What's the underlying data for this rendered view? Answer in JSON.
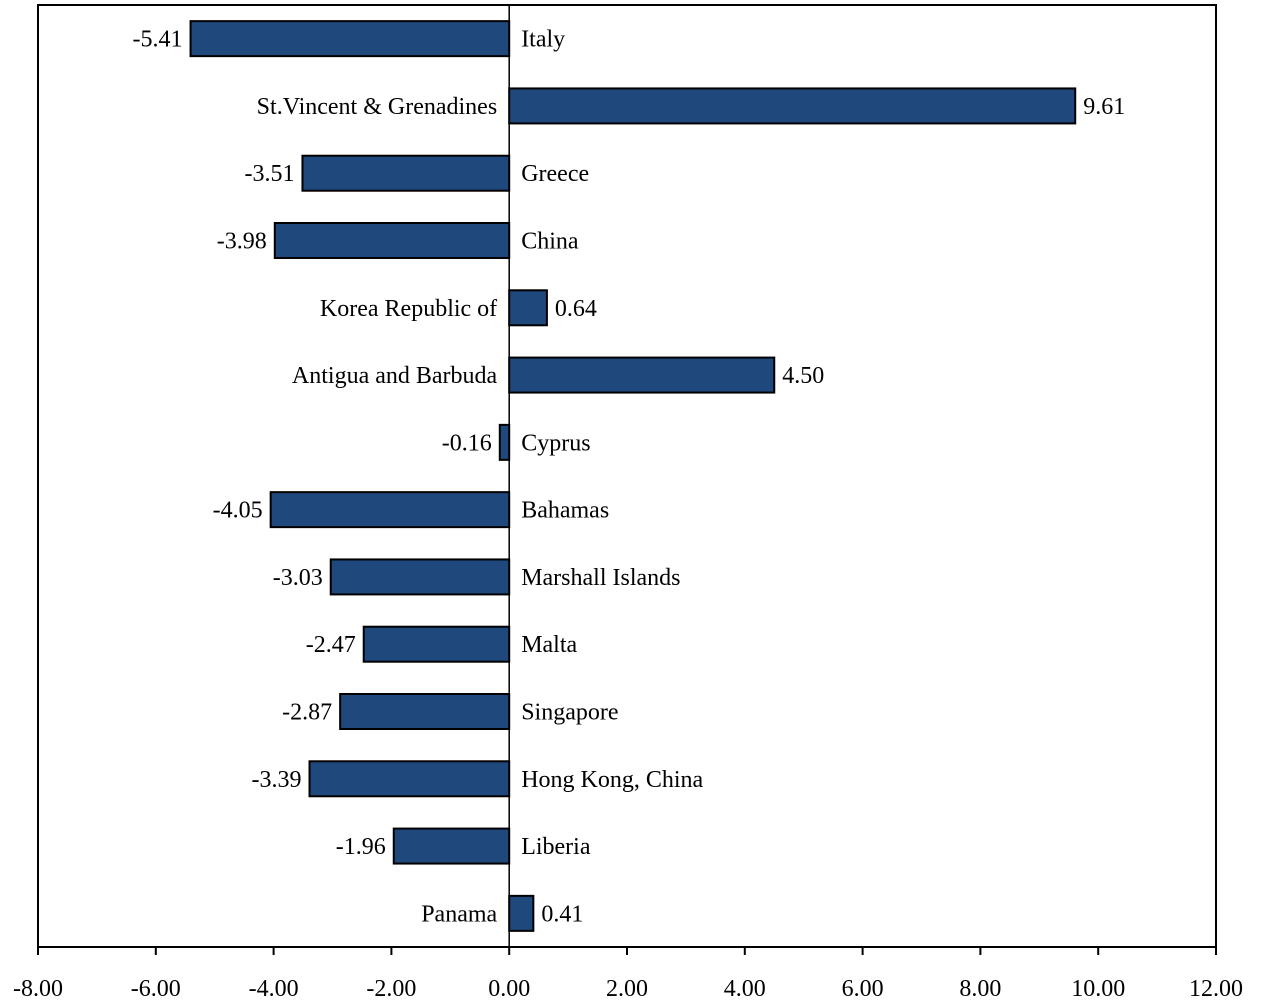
{
  "chart_data": {
    "type": "bar",
    "orientation": "horizontal",
    "categories": [
      "Italy",
      "St.Vincent & Grenadines",
      "Greece",
      "China",
      "Korea Republic of",
      "Antigua and Barbuda",
      "Cyprus",
      "Bahamas",
      "Marshall Islands",
      "Malta",
      "Singapore",
      "Hong Kong, China",
      "Liberia",
      "Panama"
    ],
    "values": [
      -5.41,
      9.61,
      -3.51,
      -3.98,
      0.64,
      4.5,
      -0.16,
      -4.05,
      -3.03,
      -2.47,
      -2.87,
      -3.39,
      -1.96,
      0.41
    ],
    "value_labels": [
      "-5.41",
      "9.61",
      "-3.51",
      "-3.98",
      "0.64",
      "4.50",
      "-0.16",
      "-4.05",
      "-3.03",
      "-2.47",
      "-2.87",
      "-3.39",
      "-1.96",
      "0.41"
    ],
    "xlim": [
      -8,
      12
    ],
    "x_ticks": [
      -8,
      -6,
      -4,
      -2,
      0,
      2,
      4,
      6,
      8,
      10,
      12
    ],
    "x_tick_labels": [
      "-8.00",
      "-6.00",
      "-4.00",
      "-2.00",
      "0.00",
      "2.00",
      "4.00",
      "6.00",
      "8.00",
      "10.00",
      "12.00"
    ],
    "title": "",
    "xlabel": "",
    "ylabel": "",
    "grid": false,
    "legend": "none",
    "bar_color": "#1f497d",
    "bar_edge_color": "#000000"
  }
}
